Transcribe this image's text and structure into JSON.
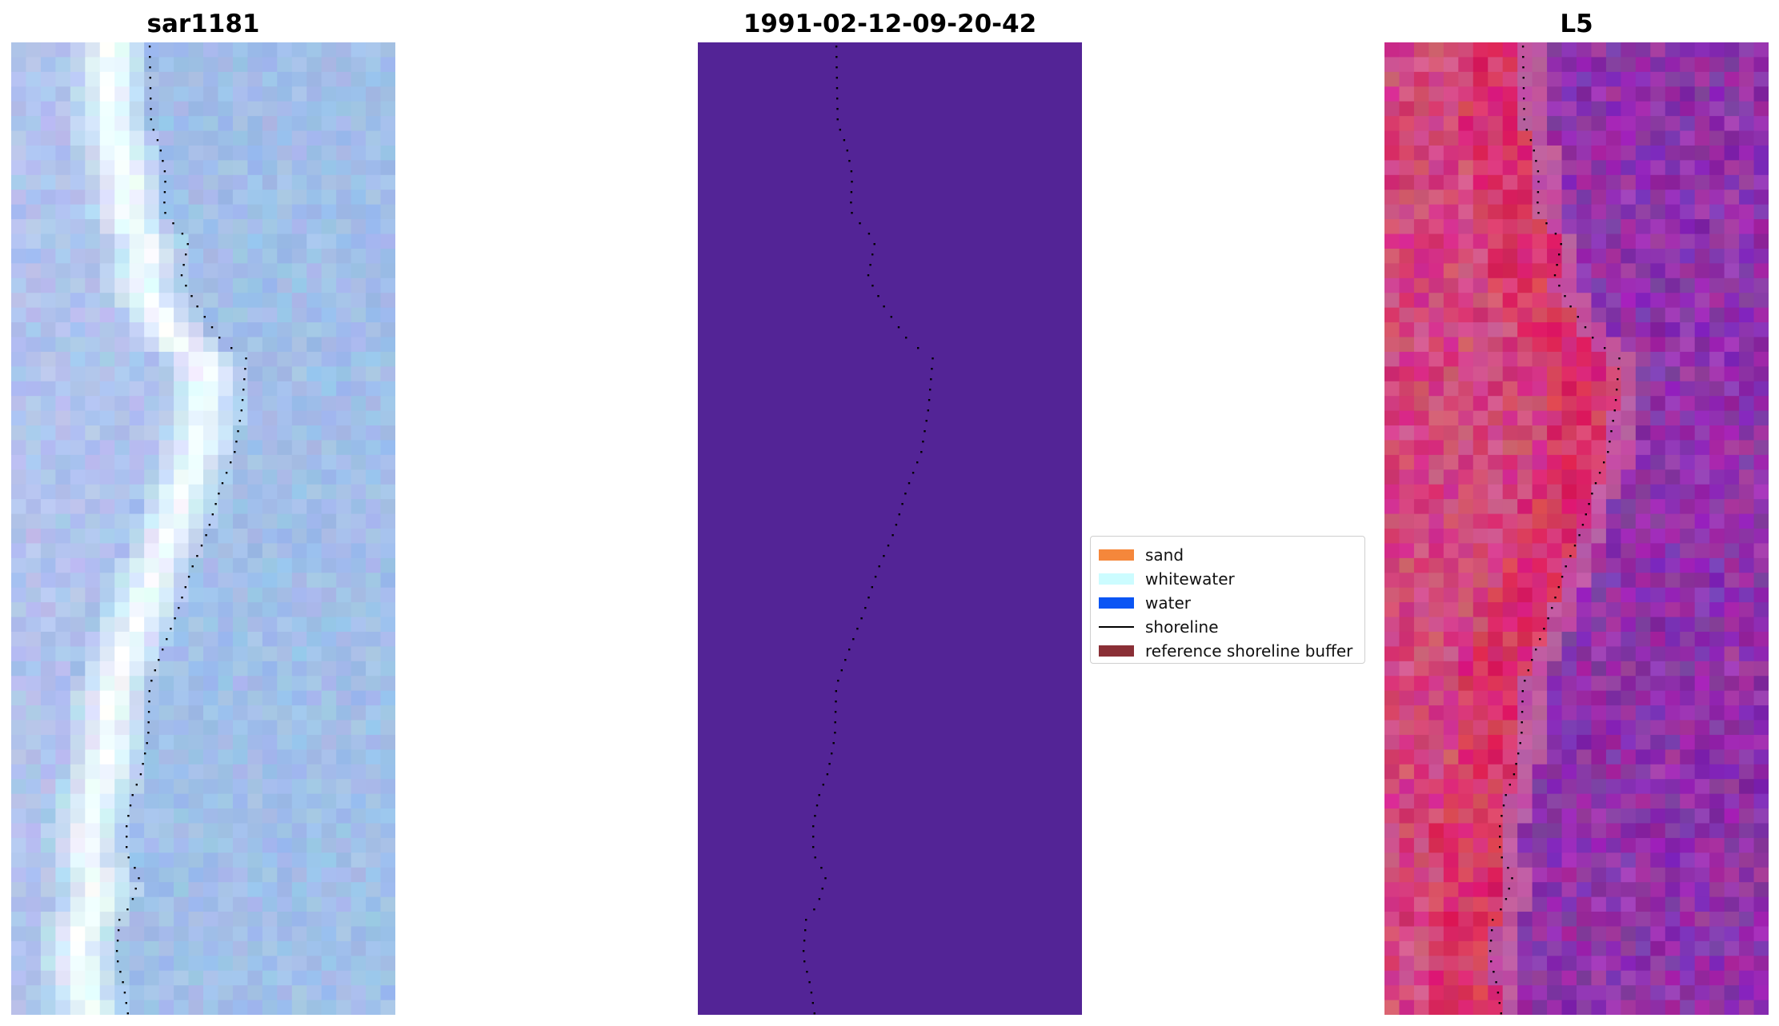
{
  "panels": [
    {
      "title": "sar1181",
      "kind": "rgb"
    },
    {
      "title": "1991-02-12-09-20-42",
      "kind": "classified"
    },
    {
      "title": "L5",
      "kind": "index"
    }
  ],
  "legend": [
    {
      "label": "sand",
      "color": "#f5873b",
      "type": "patch"
    },
    {
      "label": "whitewater",
      "color": "#ccfcff",
      "type": "patch"
    },
    {
      "label": "water",
      "color": "#0a55f4",
      "type": "patch"
    },
    {
      "label": "shoreline",
      "color": "#000000",
      "type": "line"
    },
    {
      "label": "reference shoreline buffer",
      "color": "#8a2f36",
      "type": "patch"
    }
  ],
  "colors": {
    "classified_fill": "#532496",
    "shoreline_dots": "#000000"
  }
}
